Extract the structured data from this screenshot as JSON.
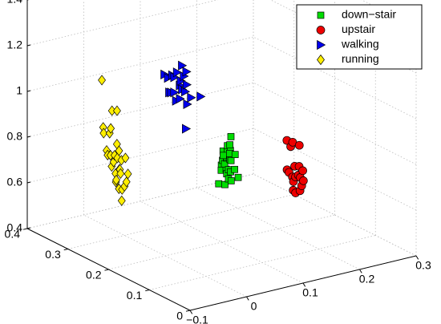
{
  "chart_data": {
    "type": "scatter",
    "projection": "3d",
    "title": "",
    "xlabel": "",
    "ylabel": "",
    "zlabel": "",
    "xlim": [
      -0.1,
      0.3
    ],
    "ylim": [
      0,
      0.4
    ],
    "zlim": [
      0.4,
      1.4
    ],
    "x_ticks": [
      "−0.1",
      "0",
      "0.1",
      "0.2",
      "0.3"
    ],
    "y_ticks": [
      "0",
      "0.1",
      "0.2",
      "0.3",
      "0.4"
    ],
    "z_ticks": [
      "0.4",
      "0.6",
      "0.8",
      "1",
      "1.2",
      "1.4"
    ],
    "grid": true,
    "legend_position": "top-right",
    "series": [
      {
        "name": "down−stair",
        "marker": "square",
        "color": "#00dd00",
        "points": [
          [
            0.094,
            0.199,
            0.66
          ],
          [
            0.098,
            0.198,
            0.74
          ],
          [
            0.1,
            0.198,
            0.76
          ],
          [
            0.101,
            0.198,
            0.8
          ],
          [
            0.102,
            0.204,
            0.71
          ],
          [
            0.105,
            0.199,
            0.65
          ],
          [
            0.105,
            0.196,
            0.72
          ],
          [
            0.105,
            0.2,
            0.74
          ],
          [
            0.105,
            0.195,
            0.77
          ],
          [
            0.105,
            0.193,
            0.8
          ],
          [
            0.107,
            0.198,
            0.77
          ],
          [
            0.108,
            0.197,
            0.82
          ],
          [
            0.107,
            0.206,
            0.77
          ],
          [
            0.111,
            0.203,
            0.69
          ],
          [
            0.112,
            0.2,
            0.67
          ],
          [
            0.112,
            0.2,
            0.71
          ],
          [
            0.111,
            0.195,
            0.76
          ],
          [
            0.111,
            0.194,
            0.8
          ],
          [
            0.112,
            0.194,
            0.86
          ],
          [
            0.114,
            0.2,
            0.78
          ],
          [
            0.113,
            0.198,
            0.82
          ],
          [
            0.116,
            0.199,
            0.66
          ],
          [
            0.115,
            0.199,
            0.7
          ],
          [
            0.115,
            0.198,
            0.75
          ],
          [
            0.118,
            0.192,
            0.78
          ],
          [
            0.12,
            0.196,
            0.71
          ],
          [
            0.127,
            0.197,
            0.67
          ]
        ]
      },
      {
        "name": "upstair",
        "marker": "circle",
        "color": "#ee0000",
        "points": [
          [
            0.17,
            0.137,
            0.86
          ],
          [
            0.171,
            0.138,
            0.73
          ],
          [
            0.178,
            0.143,
            0.71
          ],
          [
            0.176,
            0.136,
            0.83
          ],
          [
            0.178,
            0.134,
            0.85
          ],
          [
            0.182,
            0.14,
            0.69
          ],
          [
            0.184,
            0.141,
            0.63
          ],
          [
            0.183,
            0.139,
            0.67
          ],
          [
            0.183,
            0.136,
            0.74
          ],
          [
            0.186,
            0.138,
            0.69
          ],
          [
            0.184,
            0.126,
            0.84
          ],
          [
            0.186,
            0.138,
            0.62
          ],
          [
            0.188,
            0.134,
            0.7
          ],
          [
            0.188,
            0.132,
            0.74
          ],
          [
            0.19,
            0.132,
            0.69
          ],
          [
            0.191,
            0.134,
            0.63
          ],
          [
            0.194,
            0.134,
            0.65
          ],
          [
            0.193,
            0.13,
            0.72
          ],
          [
            0.197,
            0.134,
            0.67
          ]
        ]
      },
      {
        "name": "walking",
        "marker": "triangle-right",
        "color": "#0000ee",
        "points": [
          [
            0.039,
            0.256,
            1.12
          ],
          [
            0.046,
            0.257,
            1.1
          ],
          [
            0.051,
            0.261,
            1.03
          ],
          [
            0.053,
            0.259,
            1.03
          ],
          [
            0.052,
            0.255,
            1.11
          ],
          [
            0.055,
            0.254,
            1.1
          ],
          [
            0.057,
            0.257,
            1.03
          ],
          [
            0.061,
            0.258,
            0.99
          ],
          [
            0.059,
            0.253,
            1.12
          ],
          [
            0.064,
            0.253,
            1.06
          ],
          [
            0.065,
            0.254,
            1.0
          ],
          [
            0.065,
            0.252,
            1.08
          ],
          [
            0.065,
            0.249,
            1.15
          ],
          [
            0.068,
            0.253,
            1.04
          ],
          [
            0.069,
            0.25,
            1.1
          ],
          [
            0.072,
            0.251,
            1.03
          ],
          [
            0.072,
            0.248,
            1.12
          ],
          [
            0.077,
            0.256,
            0.86
          ],
          [
            0.074,
            0.25,
            1.06
          ],
          [
            0.077,
            0.253,
            0.97
          ],
          [
            0.081,
            0.249,
            1.0
          ],
          [
            0.095,
            0.245,
            1.0
          ]
        ]
      },
      {
        "name": "running",
        "marker": "diamond",
        "color": "#ffee00",
        "points": [
          [
            -0.022,
            0.325,
            1.07
          ],
          [
            -0.024,
            0.319,
            0.87
          ],
          [
            -0.021,
            0.322,
            0.84
          ],
          [
            -0.015,
            0.323,
            0.76
          ],
          [
            -0.014,
            0.322,
            0.74
          ],
          [
            -0.014,
            0.317,
            0.84
          ],
          [
            -0.011,
            0.319,
            0.74
          ],
          [
            -0.012,
            0.317,
            0.86
          ],
          [
            -0.012,
            0.314,
            0.94
          ],
          [
            -0.009,
            0.319,
            0.69
          ],
          [
            -0.007,
            0.317,
            0.71
          ],
          [
            -0.006,
            0.316,
            0.74
          ],
          [
            -0.006,
            0.31,
            0.94
          ],
          [
            -0.005,
            0.315,
            0.66
          ],
          [
            -0.003,
            0.317,
            0.62
          ],
          [
            -0.003,
            0.316,
            0.63
          ],
          [
            -0.004,
            0.313,
            0.79
          ],
          [
            -0.004,
            0.312,
            0.73
          ],
          [
            -0.001,
            0.312,
            0.76
          ],
          [
            -0.001,
            0.311,
            0.68
          ],
          [
            0.001,
            0.315,
            0.59
          ],
          [
            -0.001,
            0.31,
            0.68
          ],
          [
            0.001,
            0.311,
            0.66
          ],
          [
            0.001,
            0.309,
            0.72
          ],
          [
            0.003,
            0.31,
            0.59
          ],
          [
            0.003,
            0.311,
            0.54
          ],
          [
            0.006,
            0.306,
            0.73
          ],
          [
            0.008,
            0.311,
            0.6
          ],
          [
            0.01,
            0.309,
            0.62
          ],
          [
            0.009,
            0.304,
            0.66
          ]
        ]
      }
    ]
  }
}
